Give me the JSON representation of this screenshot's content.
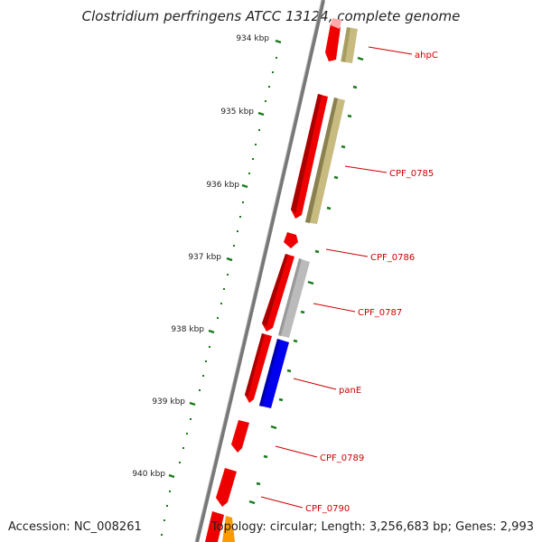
{
  "title": "Clostridium perfringens ATCC 13124, complete genome",
  "footer": {
    "accession": "Accession: NC_008261",
    "topology": "Topology: circular; Length: 3,256,683 bp; Genes: 2,993"
  },
  "ticks": [
    "934 kbp",
    "935 kbp",
    "936 kbp",
    "937 kbp",
    "938 kbp",
    "939 kbp",
    "940 kbp"
  ],
  "genes": [
    {
      "name": "ahpC"
    },
    {
      "name": "CPF_0785"
    },
    {
      "name": "CPF_0786"
    },
    {
      "name": "CPF_0787"
    },
    {
      "name": "panE"
    },
    {
      "name": "CPF_0789"
    },
    {
      "name": "CPF_0790"
    }
  ],
  "colors": {
    "backbone": "#777777",
    "cds_forward": "#ee0000",
    "feature_khaki": "#c8bb80",
    "feature_grey": "#bbbbbb",
    "feature_blue": "#0000ee",
    "feature_orange": "#ff9900",
    "feature_pink": "#ffaaaa",
    "tick_color": "#1a7a1a",
    "label_color": "#cc0000"
  }
}
